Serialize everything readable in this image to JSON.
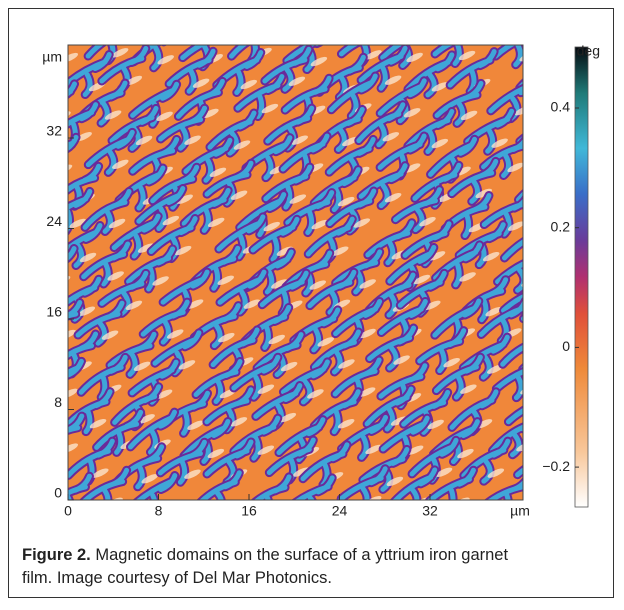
{
  "figure": {
    "x_axis": {
      "ticks": [
        "0",
        "8",
        "16",
        "24",
        "32"
      ],
      "unit": "µm"
    },
    "y_axis": {
      "ticks": [
        "0",
        "8",
        "16",
        "24",
        "32"
      ],
      "unit": "µm"
    },
    "colorbar": {
      "unit": "deg",
      "ticks": [
        "0.4",
        "0.2",
        "0",
        "−0.2"
      ]
    },
    "caption": {
      "label": "Figure 2.",
      "text": "Magnetic domains on the surface of a yttrium iron garnet film. Image courtesy of Del Mar Photonics."
    }
  }
}
